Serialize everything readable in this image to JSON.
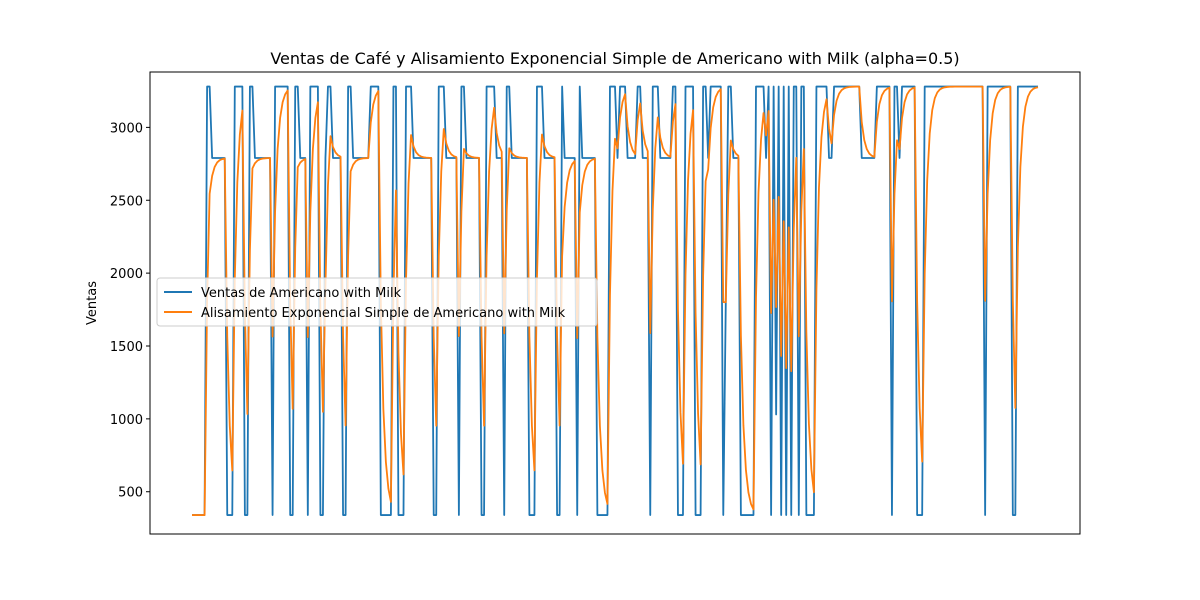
{
  "chart_data": {
    "type": "line",
    "title": "Ventas de Café y Alisamiento Exponencial Simple de Americano with Milk (alpha=0.5)",
    "xlabel": "",
    "ylabel": "Ventas",
    "ylim": [
      210,
      3380
    ],
    "yticks": [
      500,
      1000,
      1500,
      2000,
      2500,
      3000
    ],
    "xticks": [],
    "grid": false,
    "legend_position": "center-left",
    "colors": {
      "sales": "#1f77b4",
      "smoothing": "#ff7f0e"
    },
    "alpha": 0.5,
    "series": [
      {
        "name": "Ventas de Americano with Milk",
        "values": [
          340,
          340,
          340,
          340,
          340,
          340,
          3280,
          3280,
          2790,
          2790,
          2790,
          2790,
          2790,
          2790,
          340,
          340,
          340,
          3280,
          3280,
          3280,
          3280,
          340,
          340,
          3280,
          3280,
          2790,
          2790,
          2790,
          2790,
          2790,
          2790,
          2790,
          340,
          3280,
          3280,
          3280,
          3280,
          3280,
          3280,
          340,
          340,
          3280,
          3280,
          2790,
          2790,
          2790,
          340,
          3280,
          3280,
          3280,
          3280,
          340,
          340,
          2790,
          3280,
          3280,
          2790,
          2790,
          2790,
          2790,
          340,
          340,
          3280,
          3280,
          2790,
          2790,
          2790,
          2790,
          2790,
          2790,
          2790,
          3280,
          3280,
          3280,
          3280,
          340,
          340,
          340,
          340,
          340,
          3280,
          3280,
          340,
          340,
          340,
          3280,
          3280,
          3280,
          2790,
          2790,
          2790,
          2790,
          2790,
          2790,
          2790,
          2790,
          340,
          340,
          3280,
          3280,
          3280,
          2790,
          2790,
          2790,
          2790,
          2790,
          340,
          3280,
          3280,
          2790,
          2790,
          2790,
          2790,
          2790,
          2790,
          340,
          340,
          3280,
          3280,
          3280,
          3280,
          2790,
          2790,
          2790,
          340,
          3280,
          3280,
          2790,
          2790,
          2790,
          2790,
          2790,
          2790,
          2790,
          340,
          340,
          340,
          3280,
          3280,
          3280,
          2790,
          2790,
          2790,
          2790,
          2790,
          340,
          340,
          3280,
          2790,
          2790,
          2790,
          2790,
          2790,
          340,
          3280,
          2790,
          2790,
          2790,
          2790,
          2790,
          2790,
          340,
          340,
          340,
          340,
          340,
          3280,
          3280,
          3280,
          2790,
          3280,
          3280,
          3280,
          2790,
          2790,
          2790,
          2790,
          3280,
          3280,
          2790,
          2790,
          2790,
          340,
          3280,
          3280,
          3280,
          2790,
          2790,
          2790,
          2790,
          2790,
          3280,
          3280,
          340,
          340,
          340,
          3280,
          3280,
          3280,
          3280,
          340,
          340,
          340,
          3280,
          3280,
          2790,
          3280,
          3280,
          3280,
          3280,
          3280,
          340,
          1800,
          3280,
          3280,
          2790,
          2790,
          2790,
          340,
          340,
          340,
          340,
          340,
          340,
          3280,
          3280,
          3280,
          3280,
          2790,
          3280,
          340,
          3280,
          1030,
          3280,
          340,
          3280,
          340,
          3280,
          340,
          3280,
          3280,
          340,
          3280,
          3280,
          340,
          340,
          340,
          340,
          3280,
          3280,
          3280,
          3280,
          3280,
          2790,
          2790,
          3280,
          3280,
          3280,
          3280,
          3280,
          3280,
          3280,
          3280,
          3280,
          3280,
          3280,
          2790,
          2790,
          2790,
          2790,
          2790,
          2790,
          3280,
          3280,
          3280,
          3280,
          3280,
          3280,
          340,
          3280,
          3280,
          2790,
          3280,
          3280,
          3280,
          3280,
          3280,
          3280,
          340,
          340,
          340,
          3280,
          3280,
          3280,
          3280,
          3280,
          3280,
          3280,
          3280,
          3280,
          3280,
          3280,
          3280,
          3280,
          3280,
          3280,
          3280,
          3280,
          3280,
          3280,
          3280,
          3280,
          3280,
          3280,
          3280,
          340,
          3280,
          3280,
          3280,
          3280,
          3280,
          3280,
          3280,
          3280,
          3280,
          3280,
          340,
          340,
          3280,
          3280,
          3280,
          3280,
          3280,
          3280,
          3280,
          3280,
          3280
        ]
      },
      {
        "name": "Alisamiento Exponencial Simple de Americano with Milk",
        "values": []
      }
    ]
  }
}
